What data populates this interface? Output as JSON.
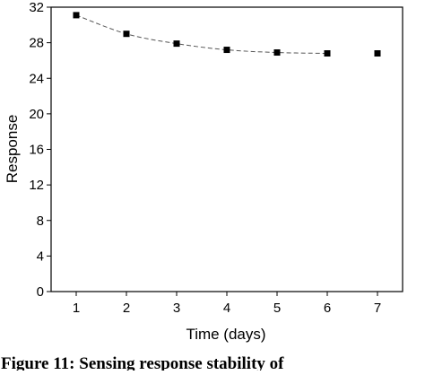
{
  "caption": {
    "text": "Figure 11: Sensing response stability of"
  },
  "chart_data": {
    "type": "scatter",
    "title": "",
    "xlabel": "Time (days)",
    "ylabel": "Response",
    "xlim": [
      0.5,
      7.5
    ],
    "ylim": [
      0,
      32
    ],
    "x_ticks": [
      1,
      2,
      3,
      4,
      5,
      6,
      7
    ],
    "y_ticks": [
      0,
      4,
      8,
      12,
      16,
      20,
      24,
      28,
      32
    ],
    "grid": false,
    "legend": "none",
    "series": [
      {
        "x": [
          1,
          2,
          3,
          4,
          5,
          6,
          7
        ],
        "y": [
          31.1,
          29.0,
          27.9,
          27.2,
          26.9,
          26.8,
          26.8
        ],
        "marker": "square",
        "color": "#000000"
      }
    ],
    "fit_line": {
      "style": "dashed",
      "color": "#555555",
      "x": [
        1,
        2,
        3,
        4,
        5,
        6
      ],
      "y": [
        31.1,
        29.0,
        27.9,
        27.2,
        26.9,
        26.8
      ]
    }
  }
}
